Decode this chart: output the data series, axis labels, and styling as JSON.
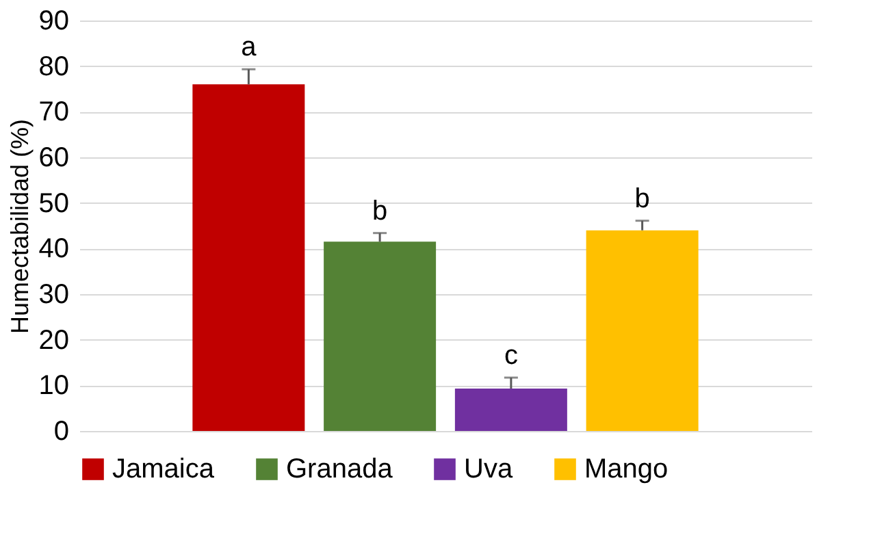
{
  "chart_data": {
    "type": "bar",
    "ylabel": "Humectabilidad  (%)",
    "categories": [
      null
    ],
    "series": [
      {
        "name": "Jamaica",
        "color": "#c00000",
        "values": [
          76
        ],
        "errors": [
          [
            76,
            79.3
          ]
        ]
      },
      {
        "name": "Granada",
        "color": "#548235",
        "values": [
          41.5
        ],
        "errors": [
          [
            41.5,
            43.4
          ]
        ]
      },
      {
        "name": "Uva",
        "color": "#7030a0",
        "values": [
          9.3
        ],
        "errors": [
          [
            9.3,
            11.7
          ]
        ]
      },
      {
        "name": "Mango",
        "color": "#ffc000",
        "values": [
          44
        ],
        "errors": [
          [
            44,
            46.1
          ]
        ]
      }
    ],
    "annotations": [
      {
        "text": "a",
        "y": 79.3
      },
      {
        "text": "b",
        "y": 43.4
      },
      {
        "text": "c",
        "y": 11.7
      },
      {
        "text": "b",
        "y": 46.1
      }
    ],
    "ylim": [
      0,
      90
    ],
    "yticks": [
      0,
      10,
      20,
      30,
      40,
      50,
      60,
      70,
      80,
      90
    ],
    "grid": "y",
    "legend": "bottom"
  }
}
